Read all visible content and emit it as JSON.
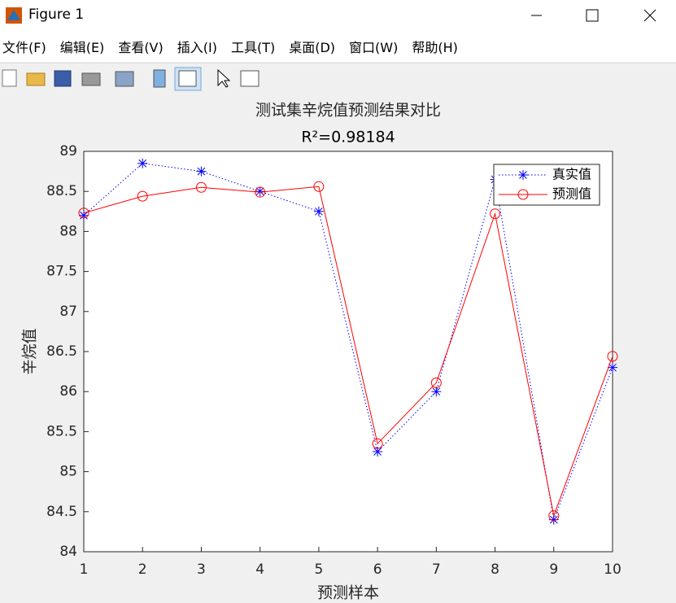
{
  "window": {
    "title": "Figure 1",
    "menu": [
      "文件(F)",
      "编辑(E)",
      "查看(V)",
      "插入(I)",
      "工具(T)",
      "桌面(D)",
      "窗口(W)",
      "帮助(H)"
    ]
  },
  "chart_data": {
    "type": "line",
    "title": "测试集辛烷值预测结果对比",
    "subtitle": "R²=0.98184",
    "x_label": "预测样本",
    "y_label": "辛烷值",
    "x": [
      1,
      2,
      3,
      4,
      5,
      6,
      7,
      8,
      9,
      10
    ],
    "series": [
      {
        "name": "真实值",
        "color": "#0000ff",
        "line_style": "dotted",
        "marker": "*",
        "values": [
          88.2,
          88.85,
          88.75,
          88.5,
          88.25,
          85.25,
          86.0,
          88.65,
          84.4,
          86.3
        ]
      },
      {
        "name": "预测值",
        "color": "#ff0000",
        "line_style": "solid",
        "marker": "o",
        "values": [
          88.23,
          88.44,
          88.55,
          88.49,
          88.56,
          85.35,
          86.11,
          88.22,
          84.45,
          86.44
        ]
      }
    ],
    "xlim": [
      1,
      10
    ],
    "xticks": [
      1,
      2,
      3,
      4,
      5,
      6,
      7,
      8,
      9,
      10
    ],
    "ylim": [
      84,
      89
    ],
    "yticks": [
      84,
      84.5,
      85,
      85.5,
      86,
      86.5,
      87,
      87.5,
      88,
      88.5,
      89
    ],
    "legend": "upper right"
  }
}
